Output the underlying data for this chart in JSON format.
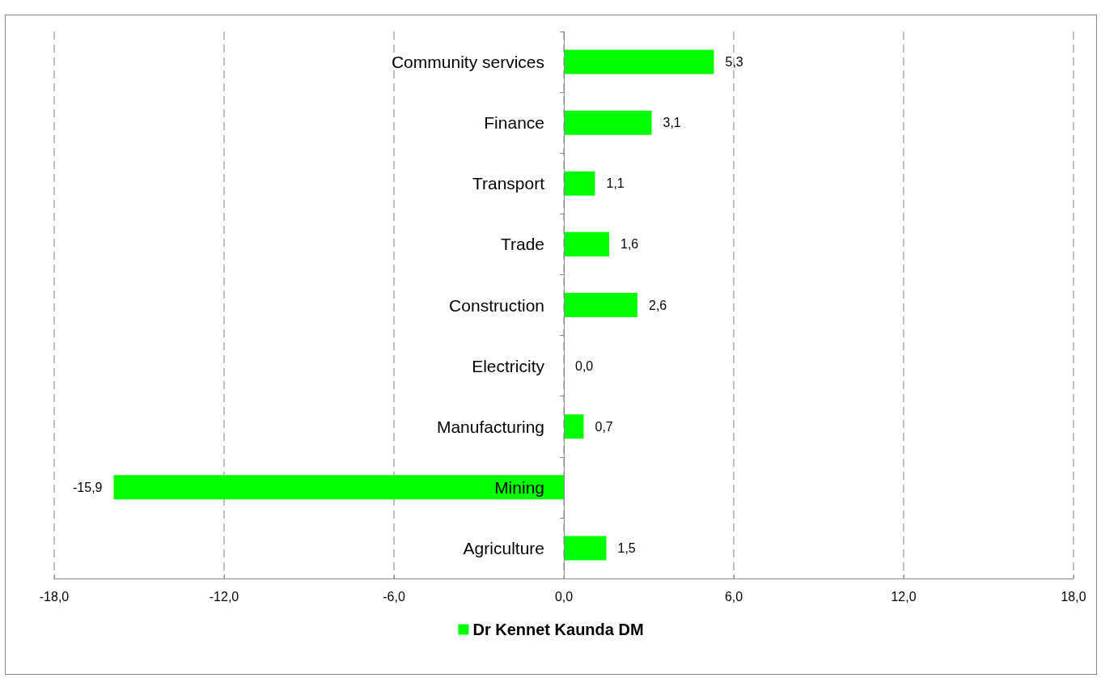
{
  "chart_data": {
    "type": "bar",
    "orientation": "horizontal",
    "categories": [
      "Community services",
      "Finance",
      "Transport",
      "Trade",
      "Construction",
      "Electricity",
      "Manufacturing",
      "Mining",
      "Agriculture"
    ],
    "series": [
      {
        "name": "Dr Kennet Kaunda DM",
        "color": "#00ff00",
        "values": [
          5.3,
          3.1,
          1.1,
          1.6,
          2.6,
          0.0,
          0.7,
          -15.9,
          1.5
        ],
        "value_labels": [
          "5,3",
          "3,1",
          "1,1",
          "1,6",
          "2,6",
          "0,0",
          "0,7",
          "-15,9",
          "1,5"
        ]
      }
    ],
    "xlim": [
      -18,
      18
    ],
    "xticks": [
      {
        "value": -18,
        "label": "-18,0"
      },
      {
        "value": -12,
        "label": "-12,0"
      },
      {
        "value": -6,
        "label": "-6,0"
      },
      {
        "value": 0,
        "label": "0,0"
      },
      {
        "value": 6,
        "label": "6,0"
      },
      {
        "value": 12,
        "label": "12,0"
      },
      {
        "value": 18,
        "label": "18,0"
      }
    ],
    "grid": "x",
    "legend": "bottom"
  }
}
